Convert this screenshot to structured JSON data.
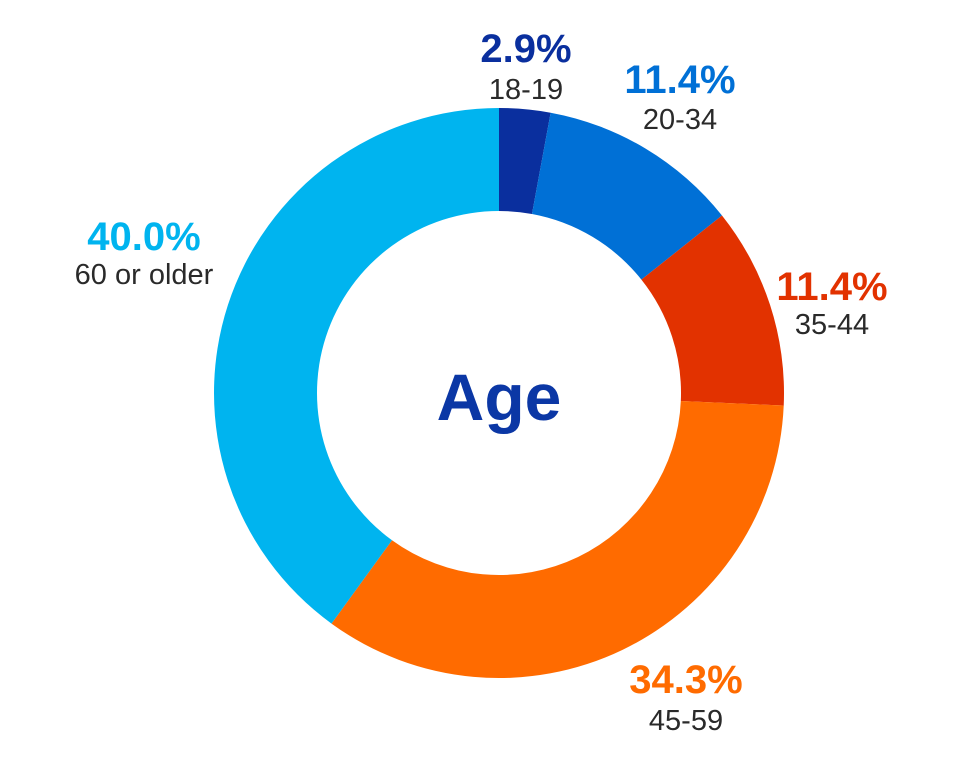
{
  "chart_data": {
    "type": "pie",
    "title": "Age",
    "donut": true,
    "categories": [
      "18-19",
      "20-34",
      "35-44",
      "45-59",
      "60 or older"
    ],
    "values": [
      2.9,
      11.4,
      11.4,
      34.3,
      40.0
    ],
    "value_labels": [
      "2.9%",
      "11.4%",
      "11.4%",
      "34.3%",
      "40.0%"
    ],
    "colors": [
      "#0a2f9e",
      "#0070d6",
      "#e23200",
      "#ff6b00",
      "#00b4ef"
    ],
    "title_color": "#0b37a5",
    "start_angle": "12 o'clock",
    "direction": "clockwise"
  }
}
